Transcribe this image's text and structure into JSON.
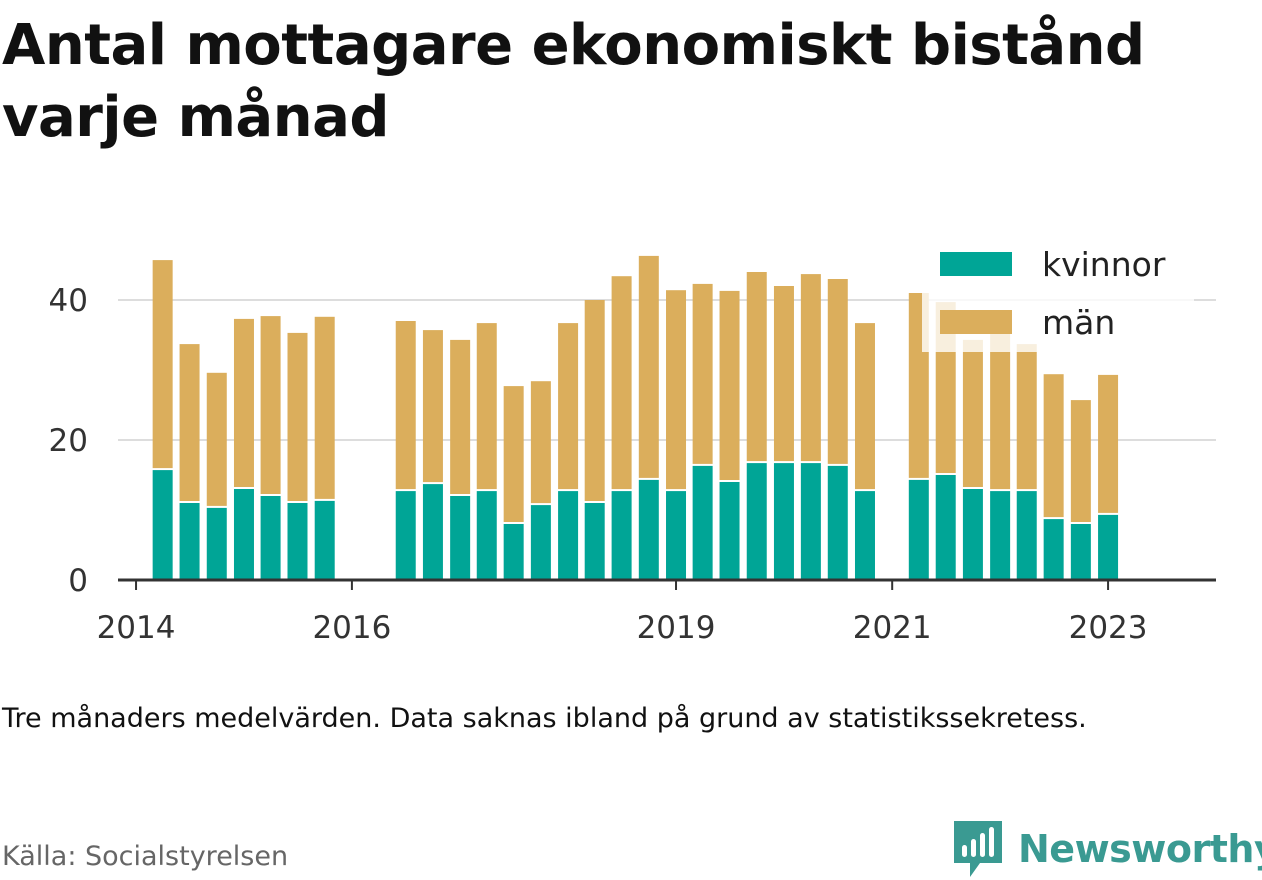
{
  "title": "Antal mottagare ekonomiskt bistånd varje månad",
  "note": "Tre månaders medelvärden. Data saknas ibland på grund av statistikssekretess.",
  "source": "Källa: Socialstyrelsen",
  "brand": {
    "name": "Newsworthy",
    "color": "#3a9a92"
  },
  "colors": {
    "kvinnor": "#00a596",
    "man": "#dbae5c",
    "grid": "#dddddd",
    "axis": "#333333"
  },
  "chart_data": {
    "type": "bar",
    "stacked": true,
    "title": "Antal mottagare ekonomiskt bistånd varje månad",
    "xlabel": "",
    "ylabel": "",
    "ylim": [
      0,
      50
    ],
    "yticks": [
      0,
      20,
      40
    ],
    "xticks": [
      "2014",
      "2016",
      "2019",
      "2021",
      "2023"
    ],
    "xlim": [
      "2013-11-01",
      "2024-01-01"
    ],
    "grid": true,
    "legend_position": "top-right",
    "x": [
      "2014-04-01",
      "2014-07-01",
      "2014-10-01",
      "2015-01-01",
      "2015-04-01",
      "2015-07-01",
      "2015-10-01",
      "2016-07-01",
      "2016-10-01",
      "2017-01-01",
      "2017-04-01",
      "2017-07-01",
      "2017-10-01",
      "2018-01-01",
      "2018-04-01",
      "2018-07-01",
      "2018-10-01",
      "2019-01-01",
      "2019-04-01",
      "2019-07-01",
      "2019-10-01",
      "2020-01-01",
      "2020-04-01",
      "2020-07-01",
      "2020-10-01",
      "2021-04-01",
      "2021-07-01",
      "2021-10-01",
      "2022-01-01",
      "2022-04-01",
      "2022-07-01",
      "2022-10-01",
      "2023-01-01"
    ],
    "series": [
      {
        "name": "kvinnor",
        "values": [
          15.7,
          11.0,
          10.3,
          13.0,
          12.0,
          11.0,
          11.3,
          12.7,
          13.7,
          12.0,
          12.7,
          8.0,
          10.7,
          12.7,
          11.0,
          12.7,
          14.3,
          12.7,
          16.3,
          14.0,
          16.7,
          16.7,
          16.7,
          16.3,
          12.7,
          14.3,
          15.0,
          13.0,
          12.7,
          12.7,
          8.7,
          8.0,
          9.3
        ]
      },
      {
        "name": "män",
        "values": [
          30.0,
          22.7,
          19.3,
          24.3,
          25.7,
          24.3,
          26.3,
          24.3,
          22.0,
          22.3,
          24.0,
          19.7,
          17.7,
          24.0,
          29.0,
          30.7,
          32.0,
          28.7,
          26.0,
          27.3,
          27.3,
          25.3,
          27.0,
          26.7,
          24.0,
          26.7,
          24.7,
          21.3,
          22.7,
          21.0,
          20.7,
          17.7,
          20.0
        ]
      }
    ]
  }
}
